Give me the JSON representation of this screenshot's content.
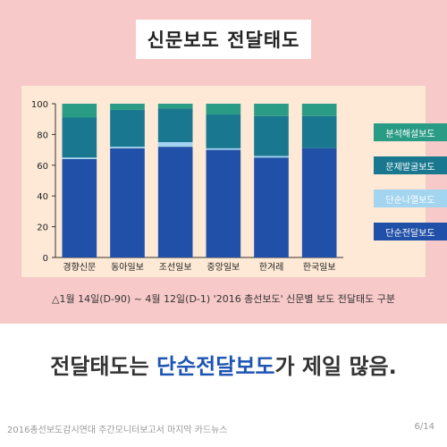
{
  "title": "신문보도 전달태도",
  "caption": "△1월 14일(D-90) ~ 4월 12일(D-1) '2016 총선보도' 신문별 보도 전달태도 구분",
  "headline": {
    "before": "전달태도는 ",
    "highlight": "단순전달보도",
    "after": "가 제일 많음."
  },
  "footer": {
    "left": "2016총선보도감시연대 주간모니터보고서 마지막 카드뉴스",
    "page": "6/14"
  },
  "colors": {
    "panel": "#f7c9c9",
    "chart_bg": "#fde9d6",
    "highlight": "#1e55b3"
  },
  "chart_data": {
    "type": "bar",
    "stacked": true,
    "categories": [
      "경향신문",
      "동아일보",
      "조선일보",
      "중앙일보",
      "한겨레",
      "한국일보"
    ],
    "ylim": [
      0,
      100
    ],
    "yticks": [
      0,
      20,
      40,
      60,
      80,
      100
    ],
    "legend_position": "right",
    "series": [
      {
        "name": "단순전달보도",
        "color": "#2150a8",
        "values": [
          64,
          71,
          72,
          70,
          65,
          71
        ]
      },
      {
        "name": "단순나열보도",
        "color": "#a3d4f0",
        "values": [
          1,
          1,
          3,
          1,
          1,
          0
        ]
      },
      {
        "name": "문제발굴보도",
        "color": "#19788f",
        "values": [
          26,
          24,
          22,
          22,
          26,
          21
        ]
      },
      {
        "name": "분석해설보도",
        "color": "#2a9b84",
        "values": [
          9,
          4,
          3,
          7,
          8,
          8
        ]
      }
    ]
  }
}
